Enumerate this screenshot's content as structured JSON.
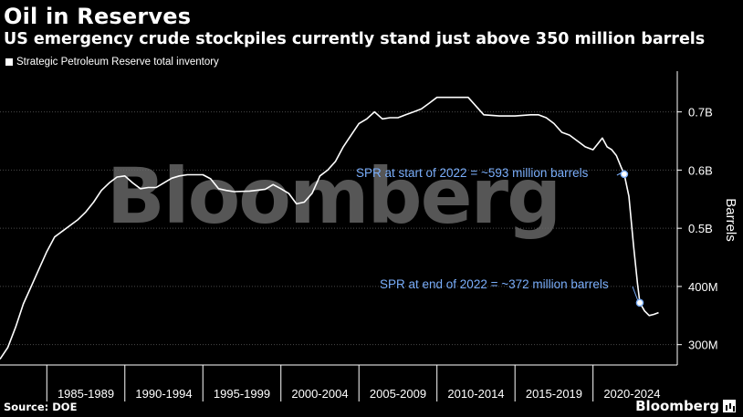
{
  "title": "Oil in Reserves",
  "subtitle": "US emergency crude stockpiles currently stand just above 350 million barrels",
  "source": "Source: DOE",
  "brand": "Bloomberg",
  "watermark": "Bloomberg",
  "chart_data": {
    "type": "line",
    "series": [
      {
        "name": "Strategic Petroleum Reserve total inventory",
        "color": "#ffffff",
        "points": [
          [
            1982.0,
            275
          ],
          [
            1982.5,
            295
          ],
          [
            1983.0,
            330
          ],
          [
            1983.5,
            370
          ],
          [
            1984.0,
            400
          ],
          [
            1984.5,
            430
          ],
          [
            1985.0,
            460
          ],
          [
            1985.5,
            485
          ],
          [
            1986.0,
            495
          ],
          [
            1986.5,
            505
          ],
          [
            1987.0,
            515
          ],
          [
            1987.5,
            528
          ],
          [
            1988.0,
            545
          ],
          [
            1988.5,
            565
          ],
          [
            1989.0,
            578
          ],
          [
            1989.5,
            588
          ],
          [
            1990.0,
            590
          ],
          [
            1990.5,
            578
          ],
          [
            1991.0,
            568
          ],
          [
            1991.5,
            570
          ],
          [
            1992.0,
            570
          ],
          [
            1992.5,
            578
          ],
          [
            1993.0,
            586
          ],
          [
            1993.5,
            590
          ],
          [
            1994.0,
            592
          ],
          [
            1995.0,
            592
          ],
          [
            1995.5,
            585
          ],
          [
            1996.0,
            568
          ],
          [
            1996.5,
            565
          ],
          [
            1997.0,
            563
          ],
          [
            1998.0,
            564
          ],
          [
            1999.0,
            567
          ],
          [
            1999.5,
            575
          ],
          [
            2000.0,
            568
          ],
          [
            2000.5,
            560
          ],
          [
            2001.0,
            542
          ],
          [
            2001.5,
            545
          ],
          [
            2002.0,
            560
          ],
          [
            2002.5,
            590
          ],
          [
            2003.0,
            600
          ],
          [
            2003.5,
            615
          ],
          [
            2004.0,
            640
          ],
          [
            2004.5,
            660
          ],
          [
            2005.0,
            680
          ],
          [
            2005.5,
            688
          ],
          [
            2006.0,
            700
          ],
          [
            2006.5,
            688
          ],
          [
            2007.0,
            690
          ],
          [
            2007.5,
            690
          ],
          [
            2008.0,
            695
          ],
          [
            2008.5,
            700
          ],
          [
            2009.0,
            705
          ],
          [
            2009.5,
            715
          ],
          [
            2010.0,
            725
          ],
          [
            2011.0,
            725
          ],
          [
            2012.0,
            725
          ],
          [
            2013.0,
            695
          ],
          [
            2014.0,
            693
          ],
          [
            2015.0,
            693
          ],
          [
            2016.0,
            695
          ],
          [
            2016.5,
            695
          ],
          [
            2017.0,
            690
          ],
          [
            2017.5,
            680
          ],
          [
            2018.0,
            665
          ],
          [
            2018.5,
            660
          ],
          [
            2019.0,
            650
          ],
          [
            2019.5,
            640
          ],
          [
            2020.0,
            635
          ],
          [
            2020.3,
            645
          ],
          [
            2020.6,
            655
          ],
          [
            2020.9,
            640
          ],
          [
            2021.2,
            635
          ],
          [
            2021.5,
            625
          ],
          [
            2021.8,
            605
          ],
          [
            2022.0,
            593
          ],
          [
            2022.3,
            555
          ],
          [
            2022.6,
            470
          ],
          [
            2022.85,
            405
          ],
          [
            2023.0,
            372
          ],
          [
            2023.3,
            358
          ],
          [
            2023.6,
            350
          ],
          [
            2023.9,
            352
          ],
          [
            2024.2,
            355
          ]
        ]
      }
    ],
    "markers": [
      [
        2022.0,
        593
      ],
      [
        2023.0,
        372
      ]
    ],
    "annotations": [
      {
        "label": "SPR at start of 2022 = ~593 million barrels",
        "x": 2022.0,
        "y": 593,
        "color": "#7aaefb"
      },
      {
        "label": "SPR at end of 2022 = ~372 million barrels",
        "x": 2023.0,
        "y": 372,
        "color": "#7aaefb"
      }
    ],
    "x_categories": [
      "1985-1989",
      "1990-1994",
      "1995-1999",
      "2000-2004",
      "2005-2009",
      "2010-2014",
      "2015-2019",
      "2020-2024"
    ],
    "xlim": [
      1982.0,
      2025.4
    ],
    "ylim": [
      265,
      770
    ],
    "y_ticks": [
      {
        "value": 300,
        "label": "300M"
      },
      {
        "value": 400,
        "label": "400M"
      },
      {
        "value": 500,
        "label": "0.5B"
      },
      {
        "value": 600,
        "label": "0.6B"
      },
      {
        "value": 700,
        "label": "0.7B"
      }
    ],
    "ylabel": "Barrels",
    "grid": true,
    "legend": "top-left"
  }
}
